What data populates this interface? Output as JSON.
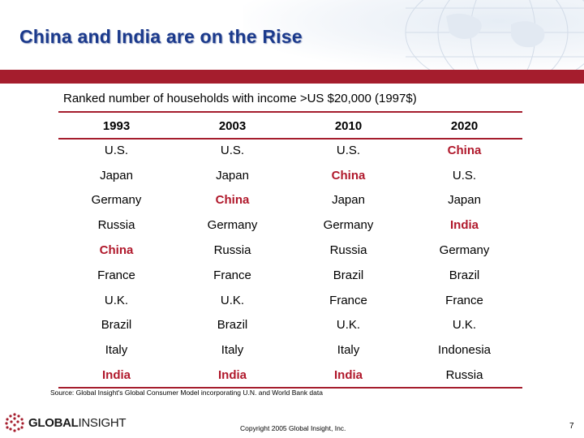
{
  "slide": {
    "title": "China and India are on the Rise",
    "subtitle": "Ranked number of households with income >US $20,000 (1997$)",
    "source": "Source: Global Insight's Global Consumer Model incorporating U.N. and World Bank data",
    "logo": {
      "bold": "GLOBAL",
      "light": "INSIGHT"
    },
    "copyright": "Copyright 2005 Global Insight, Inc.",
    "page_number": "7",
    "colors": {
      "title": "#1b3a8c",
      "accent_bar": "#a51d2d",
      "highlight": "#b0182b"
    }
  },
  "table": {
    "headers": [
      "1993",
      "2003",
      "2010",
      "2020"
    ],
    "rows": [
      [
        "U.S.",
        "U.S.",
        "U.S.",
        "China"
      ],
      [
        "Japan",
        "Japan",
        "China",
        "U.S."
      ],
      [
        "Germany",
        "China",
        "Japan",
        "Japan"
      ],
      [
        "Russia",
        "Germany",
        "Germany",
        "India"
      ],
      [
        "China",
        "Russia",
        "Russia",
        "Germany"
      ],
      [
        "France",
        "France",
        "Brazil",
        "Brazil"
      ],
      [
        "U.K.",
        "U.K.",
        "France",
        "France"
      ],
      [
        "Brazil",
        "Brazil",
        "U.K.",
        "U.K."
      ],
      [
        "Italy",
        "Italy",
        "Italy",
        "Indonesia"
      ],
      [
        "India",
        "India",
        "India",
        "Russia"
      ]
    ],
    "highlighted": [
      "China",
      "India"
    ]
  }
}
